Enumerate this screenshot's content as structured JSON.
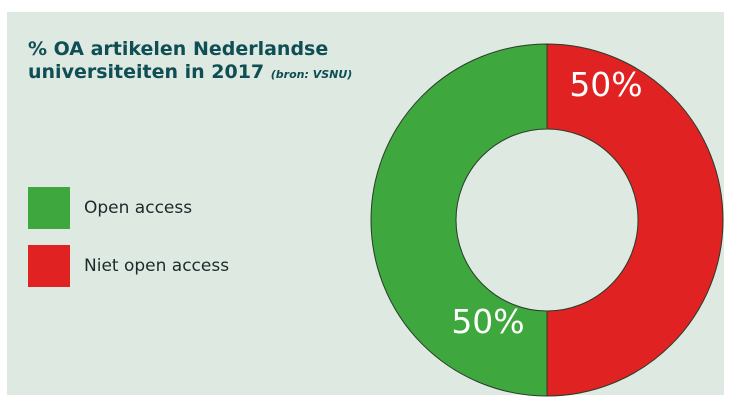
{
  "title": {
    "main": "% OA artikelen Nederlandse",
    "line2": "universiteiten in 2017",
    "source": "(bron: VSNU)"
  },
  "colors": {
    "open_access": "#3ea83e",
    "niet_open_access": "#e02222"
  },
  "chart_data": {
    "type": "pie",
    "title": "% OA artikelen Nederlandse universiteiten in 2017 (bron: VSNU)",
    "categories": [
      "Open access",
      "Niet open access"
    ],
    "values": [
      50,
      50
    ],
    "value_labels": [
      "50%",
      "50%"
    ],
    "legend_placement": "left"
  }
}
